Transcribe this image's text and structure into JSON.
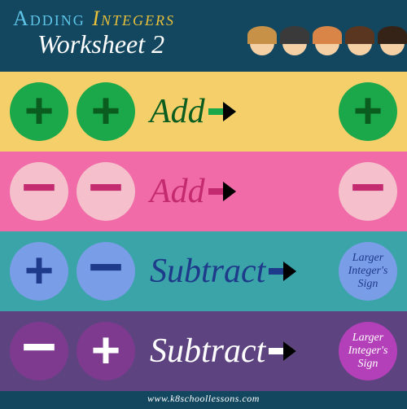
{
  "header": {
    "title_word1": "Adding",
    "title_word1_color": "#5ec5e8",
    "title_word2": "Integers",
    "title_word2_color": "#e8c03a",
    "subtitle": "Worksheet 2",
    "background": "#13475f",
    "kid_hair_colors": [
      "#c79248",
      "#3a3a3a",
      "#d98547",
      "#5a3620",
      "#362318"
    ]
  },
  "rows": [
    {
      "background": "#f5d06a",
      "circle_color": "#1ba84a",
      "sign_color": "#0a5c1f",
      "sign1": "+",
      "sign2": "+",
      "action": "Add",
      "action_color": "#0a5c1f",
      "arrow_color": "#1ba84a",
      "result_circle_color": "#1ba84a",
      "result_sign": "+",
      "result_sign_color": "#0a5c1f",
      "result_is_sign": true
    },
    {
      "background": "#f06ba8",
      "circle_color": "#f5c0cc",
      "sign_color": "#c42a6f",
      "sign1": "−",
      "sign2": "−",
      "action": "Add",
      "action_color": "#c42a6f",
      "arrow_color": "#c42a6f",
      "result_circle_color": "#f5c0cc",
      "result_sign": "−",
      "result_sign_color": "#c42a6f",
      "result_is_sign": true
    },
    {
      "background": "#3aa4a8",
      "circle_color": "#7a9de8",
      "sign_color": "#1e3a8a",
      "sign1": "+",
      "sign2": "−",
      "action": "Subtract",
      "action_color": "#1e3a8a",
      "arrow_color": "#1e3a8a",
      "result_circle_color": "#7a9de8",
      "result_text": "Larger Integer's Sign",
      "result_text_color": "#1e3a8a",
      "result_is_sign": false
    },
    {
      "background": "#5d4480",
      "circle_color": "#7e3a8f",
      "sign_color": "#ffffff",
      "sign1": "−",
      "sign2": "+",
      "action": "Subtract",
      "action_color": "#ffffff",
      "arrow_color": "#ffffff",
      "result_circle_color": "#b340b8",
      "result_text": "Larger Integer's Sign",
      "result_text_color": "#ffffff",
      "result_is_sign": false
    }
  ],
  "footer": {
    "text": "www.k8schoollessons.com",
    "background": "#13475f"
  }
}
